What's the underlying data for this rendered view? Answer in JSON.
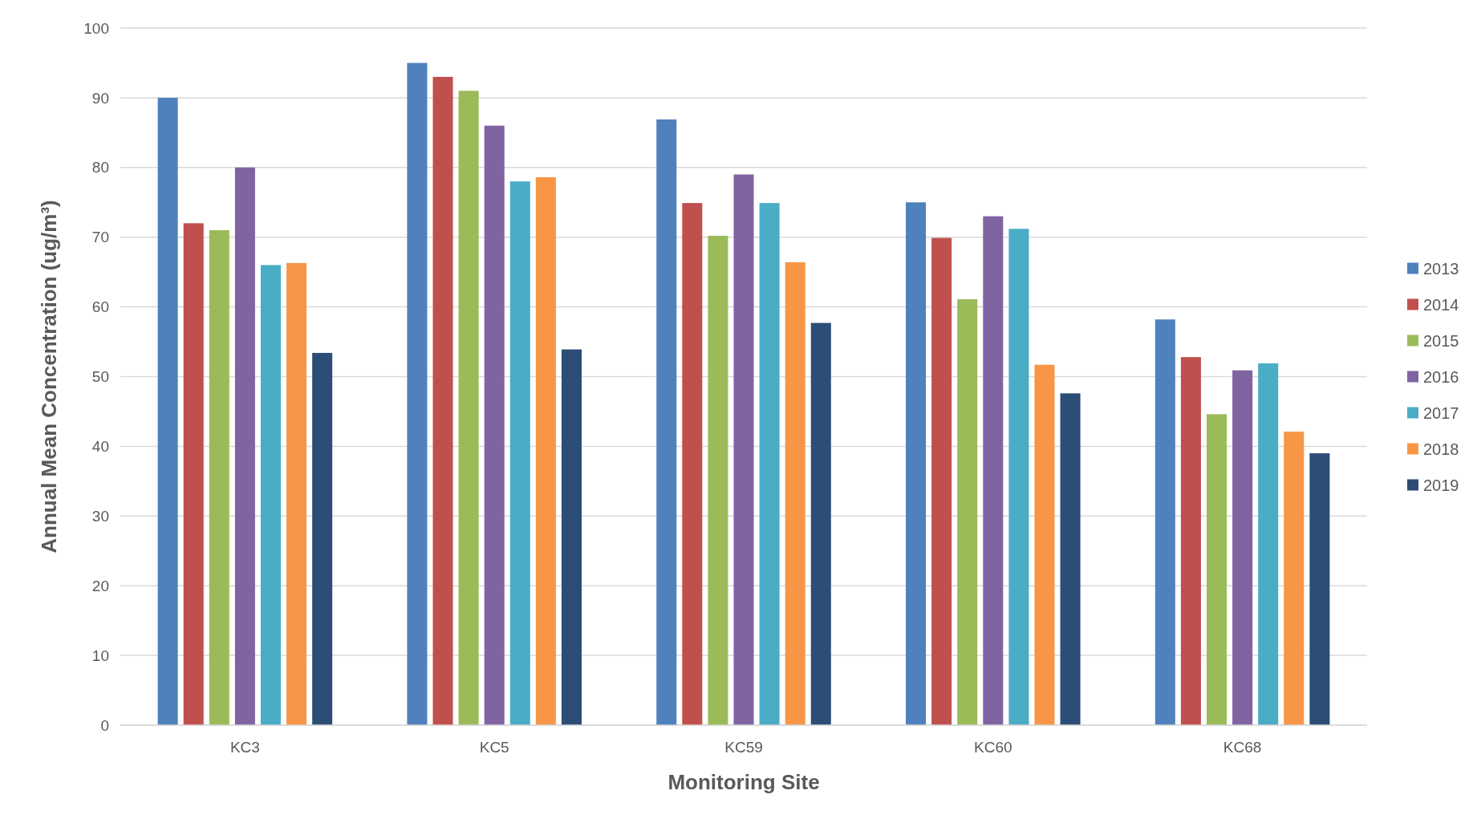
{
  "chart_data": {
    "type": "bar",
    "xlabel": "Monitoring Site",
    "ylabel": "Annual Mean Concentration (ug/m³)",
    "categories": [
      "KC3",
      "KC5",
      "KC59",
      "KC60",
      "KC68"
    ],
    "series": [
      {
        "name": "2013",
        "color": "#4f81bd",
        "values": [
          90,
          95,
          86.9,
          75,
          58.2
        ]
      },
      {
        "name": "2014",
        "color": "#c0504d",
        "values": [
          72,
          93,
          74.9,
          69.9,
          52.8
        ]
      },
      {
        "name": "2015",
        "color": "#9bbb59",
        "values": [
          71,
          91,
          70.2,
          61.1,
          44.6
        ]
      },
      {
        "name": "2016",
        "color": "#8064a2",
        "values": [
          80,
          86,
          79,
          73,
          50.9
        ]
      },
      {
        "name": "2017",
        "color": "#4bacc6",
        "values": [
          66,
          78,
          74.9,
          71.2,
          51.9
        ]
      },
      {
        "name": "2018",
        "color": "#f79646",
        "values": [
          66.3,
          78.6,
          66.4,
          51.7,
          42.1
        ]
      },
      {
        "name": "2019",
        "color": "#2c4d75",
        "values": [
          53.4,
          53.9,
          57.7,
          47.6,
          39
        ]
      }
    ],
    "ylim": [
      0,
      100
    ],
    "yticks": [
      0,
      10,
      20,
      30,
      40,
      50,
      60,
      70,
      80,
      90,
      100
    ],
    "grid": "y",
    "legend": "right"
  }
}
